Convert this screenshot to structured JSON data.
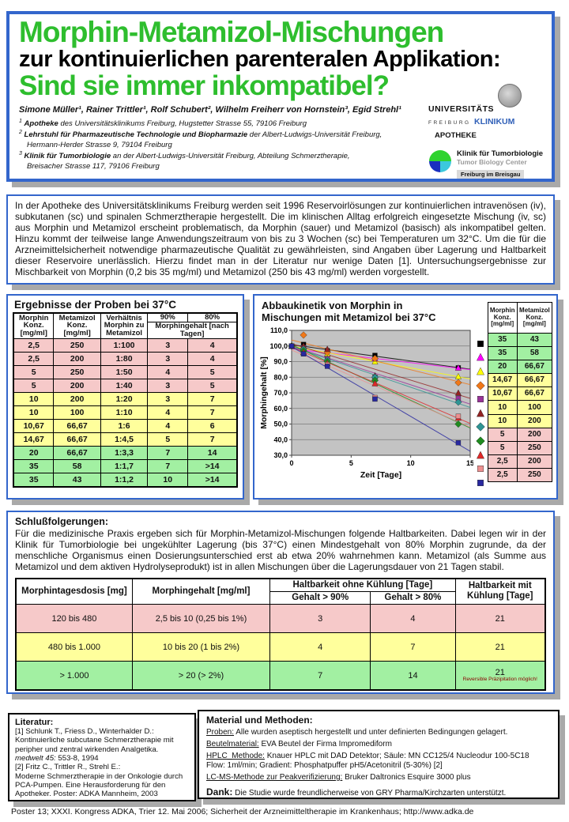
{
  "header": {
    "title_line1": "Morphin-Metamizol-Mischungen",
    "title_line2": "zur kontinuierlichen parenteralen Applikation:",
    "title_line3": "Sind sie immer inkompatibel?",
    "authors": "Simone Müller¹, Rainer Trittler¹, Rolf Schubert², Wilhelm Freiherr von Hornstein³, Egid Strehl¹",
    "affiliations": [
      {
        "sup": "1",
        "org": "Apotheke",
        "rest": " des Universitätsklinikums Freiburg, Hugstetter Strasse 55, 79106 Freiburg",
        "line2": ""
      },
      {
        "sup": "2",
        "org": "Lehrstuhl für Pharmazeutische Technologie und Biopharmazie",
        "rest": " der Albert-Ludwigs-Universität Freiburg,",
        "line2": "Hermann-Herder Strasse 9, 79104 Freiburg"
      },
      {
        "sup": "3",
        "org": "Klinik für Tumorbiologie",
        "rest": " an der Albert-Ludwigs-Universität Freiburg, Abteilung Schmerztherapie,",
        "line2": "Breisacher Strasse 117, 79106 Freiburg"
      }
    ],
    "logos": {
      "university_line1": "UNIVERSITÄTS",
      "university_line2": "FREIBURG",
      "university_line3": "KLINIKUM",
      "apotheke": "APOTHEKE",
      "tumor_line1": "Klinik für Tumorbiologie",
      "tumor_line2": "Tumor Biology Center",
      "tumor_line3": "Freiburg im Breisgau"
    }
  },
  "intro": {
    "text": "In der Apotheke des Universitätsklinikums Freiburg werden seit 1996 Reservoirlösungen zur kontinuierlichen intravenösen (iv), subkutanen (sc) und spinalen Schmerztherapie hergestellt.   Die im klinischen Alltag erfolgreich eingesetzte Mischung (iv, sc) aus Morphin und Metamizol erscheint problematisch, da Morphin (sauer) und Metamizol (basisch) als inkompatibel gelten.  Hinzu kommt der teilweise lange Anwendungszeitraum von bis zu 3 Wochen (sc) bei Temperaturen um 32°C.  Um die für die Arzneimittelsicherheit notwendige pharmazeutische Qualität zu gewährleisten, sind Angaben über Lagerung und Haltbarkeit dieser Reservoire unerlässlich.   Hierzu findet man in der Literatur nur wenige Daten [1].   Untersuchungsergebnisse zur Mischbarkeit von Morphin (0,2 bis 35 mg/ml) und Metamizol (250 bis 43 mg/ml) werden vorgestellt."
  },
  "results_table": {
    "title": "Ergebnisse der Proben bei 37°C",
    "headers": {
      "morphin": "Morphin Konz. [mg/ml]",
      "metamizol": "Metamizol Konz. [mg/ml]",
      "ratio": "Verhältnis Morphin zu Metamizol",
      "p90": "90%",
      "p80": "80%",
      "span": "Morphingehalt [nach Tagen]"
    },
    "rows": [
      {
        "morphin": "2,5",
        "metamizol": "250",
        "ratio": "1:100",
        "d90": "3",
        "d80": "4",
        "color": "pink"
      },
      {
        "morphin": "2,5",
        "metamizol": "200",
        "ratio": "1:80",
        "d90": "3",
        "d80": "4",
        "color": "pink"
      },
      {
        "morphin": "5",
        "metamizol": "250",
        "ratio": "1:50",
        "d90": "4",
        "d80": "5",
        "color": "pink"
      },
      {
        "morphin": "5",
        "metamizol": "200",
        "ratio": "1:40",
        "d90": "3",
        "d80": "5",
        "color": "pink"
      },
      {
        "morphin": "10",
        "metamizol": "200",
        "ratio": "1:20",
        "d90": "3",
        "d80": "7",
        "color": "yellow"
      },
      {
        "morphin": "10",
        "metamizol": "100",
        "ratio": "1:10",
        "d90": "4",
        "d80": "7",
        "color": "yellow"
      },
      {
        "morphin": "10,67",
        "metamizol": "66,67",
        "ratio": "1:6",
        "d90": "4",
        "d80": "6",
        "color": "yellow"
      },
      {
        "morphin": "14,67",
        "metamizol": "66,67",
        "ratio": "1:4,5",
        "d90": "5",
        "d80": "7",
        "color": "yellow"
      },
      {
        "morphin": "20",
        "metamizol": "66,67",
        "ratio": "1:3,3",
        "d90": "7",
        "d80": "14",
        "color": "green"
      },
      {
        "morphin": "35",
        "metamizol": "58",
        "ratio": "1:1,7",
        "d90": "7",
        "d80": ">14",
        "color": "green"
      },
      {
        "morphin": "35",
        "metamizol": "43",
        "ratio": "1:1,2",
        "d90": "10",
        "d80": ">14",
        "color": "green"
      }
    ]
  },
  "chart": {
    "title_line1": "Abbaukinetik von Morphin in",
    "title_line2": "Mischungen mit Metamizol bei 37°C"
  },
  "chart_data": {
    "type": "scatter",
    "title": "Abbaukinetik von Morphin in Mischungen mit Metamizol bei 37°C",
    "xlabel": "Zeit [Tage]",
    "ylabel": "Morphingehalt [%]",
    "xlim": [
      0,
      15
    ],
    "ylim": [
      30,
      110
    ],
    "xticks": [
      0,
      5,
      10,
      15
    ],
    "ytick_step": 10,
    "grid": true,
    "plot_bg": "#C3C3C3",
    "legend_position": "right",
    "trendlines": "linear",
    "x": [
      0,
      1,
      3,
      7,
      14
    ],
    "series": [
      {
        "name": "Morphin 35 / Metamizol 43",
        "marker": "square",
        "color": "#000000",
        "values": [
          100,
          101,
          97,
          94,
          86
        ]
      },
      {
        "name": "Morphin 35 / Metamizol 58",
        "marker": "triangle",
        "color": "#FF00FF",
        "values": [
          100,
          96,
          95,
          92,
          86
        ]
      },
      {
        "name": "Morphin 20 / Metamizol 66,67",
        "marker": "triangle",
        "color": "#FFFF00",
        "values": [
          100,
          99,
          95,
          90,
          80.5
        ]
      },
      {
        "name": "Morphin 14,67 / Metamizol 66,67",
        "marker": "diamond",
        "color": "#F07818",
        "values": [
          100,
          107,
          96,
          92,
          76.5
        ]
      },
      {
        "name": "Morphin 10,67 / Metamizol 66,67",
        "marker": "square",
        "color": "#993399",
        "values": [
          100,
          99,
          92,
          80,
          66.5
        ]
      },
      {
        "name": "Morphin 10 / Metamizol 100",
        "marker": "triangle",
        "color": "#932222",
        "values": [
          100,
          100,
          98,
          81,
          70
        ]
      },
      {
        "name": "Morphin 10 / Metamizol 200",
        "marker": "diamond",
        "color": "#2E9494",
        "values": [
          100,
          98,
          91,
          80,
          64
        ]
      },
      {
        "name": "Morphin 5 / Metamizol 200",
        "marker": "diamond",
        "color": "#1F8B1F",
        "values": [
          100,
          97,
          90,
          78,
          50
        ]
      },
      {
        "name": "Morphin 5 / Metamizol 250",
        "marker": "triangle",
        "color": "#E02828",
        "values": [
          100,
          96,
          89,
          76,
          54
        ]
      },
      {
        "name": "Morphin 2,5 / Metamizol 200",
        "marker": "square",
        "color": "#EE9090",
        "values": [
          100,
          95,
          88,
          67,
          55
        ]
      },
      {
        "name": "Morphin 2,5 / Metamizol 250",
        "marker": "square",
        "color": "#2828A0",
        "values": [
          100,
          95,
          87,
          66,
          38
        ]
      }
    ]
  },
  "legend_table": {
    "headers": {
      "morphin": "Morphin Konz. [mg/ml]",
      "metamizol": "Metamizol Konz. [mg/ml]"
    },
    "rows": [
      {
        "morphin": "35",
        "metamizol": "43",
        "color": "green"
      },
      {
        "morphin": "35",
        "metamizol": "58",
        "color": "green"
      },
      {
        "morphin": "20",
        "metamizol": "66,67",
        "color": "green"
      },
      {
        "morphin": "14,67",
        "metamizol": "66,67",
        "color": "yellow"
      },
      {
        "morphin": "10,67",
        "metamizol": "66,67",
        "color": "yellow"
      },
      {
        "morphin": "10",
        "metamizol": "100",
        "color": "yellow"
      },
      {
        "morphin": "10",
        "metamizol": "200",
        "color": "yellow"
      },
      {
        "morphin": "5",
        "metamizol": "200",
        "color": "pink"
      },
      {
        "morphin": "5",
        "metamizol": "250",
        "color": "pink"
      },
      {
        "morphin": "2,5",
        "metamizol": "200",
        "color": "pink"
      },
      {
        "morphin": "2,5",
        "metamizol": "250",
        "color": "pink"
      }
    ]
  },
  "conclusions": {
    "heading": "Schlußfolgerungen:",
    "text": "Für die medizinische Praxis ergeben sich für Morphin-Metamizol-Mischungen folgende Haltbarkeiten.  Dabei legen wir in der Klinik für Tumorbiologie bei ungekühlter Lagerung (bis 37°C) einen Mindestgehalt von 80% Morphin zugrunde, da der menschliche Organismus einen Dosierungsunterschied erst ab etwa 20% wahrnehmen kann.   Metamizol (als Summe aus Metamizol und dem aktiven Hydrolyseprodukt) ist in allen Mischungen über die Lagerungsdauer von 21 Tagen stabil."
  },
  "dosage_table": {
    "headers": {
      "dose": "Morphintagesdosis [mg]",
      "content": "Morphingehalt [mg/ml]",
      "no_cooling": "Haltbarkeit ohne Kühlung [Tage]",
      "g90": "Gehalt > 90%",
      "g80": "Gehalt > 80%",
      "cooling": "Haltbarkeit mit Kühlung [Tage]"
    },
    "rows": [
      {
        "dose": "120 bis 480",
        "content": "2,5 bis 10  (0,25 bis 1%)",
        "d90": "3",
        "d80": "4",
        "cooled": "21",
        "note": "",
        "color": "pink"
      },
      {
        "dose": "480 bis 1.000",
        "content": "10 bis 20  (1 bis 2%)",
        "d90": "4",
        "d80": "7",
        "cooled": "21",
        "note": "",
        "color": "yellow"
      },
      {
        "dose": "> 1.000",
        "content": "> 20  (> 2%)",
        "d90": "7",
        "d80": "14",
        "cooled": "21",
        "note": "Reversible Präzipitation möglich!",
        "color": "green"
      }
    ]
  },
  "literature": {
    "heading": "Literatur:",
    "ref1_lines": [
      "[1] Schlunk T., Friess D., Winterhalder D.:",
      "Kontinuierliche subcutane Schmerztherapie mit",
      "peripher und zentral wirkenden Analgetika."
    ],
    "ref1_journal_italic": "medwelt 45:",
    "ref1_journal_rest": " 553-8, 1994",
    "ref2_lines": [
      "[2] Fritz C., Trittler R., Strehl E.:",
      "Moderne Schmerztherapie in der Onkologie durch",
      "PCA-Pumpen.  Eine Herausforderung für den",
      "Apotheker. Poster: ADKA Mannheim, 2003"
    ]
  },
  "methods": {
    "heading": "Material und Methoden:",
    "items": [
      {
        "label": "Proben:",
        "text": " Alle wurden aseptisch hergestellt und unter definierten Bedingungen gelagert.",
        "text2": ""
      },
      {
        "label": "Beutelmaterial:",
        "text": " EVA Beutel der Firma Impromediform",
        "text2": ""
      },
      {
        "label": "HPLC_Methode:",
        "text": " Knauer HPLC mit DAD Detektor; Säule: MN CC125/4 Nucleodur 100-5C18",
        "text2": "Flow: 1ml/min; Gradient: Phosphatpuffer pH5/Acetonitril (5-30%) [2]"
      },
      {
        "label": "LC-MS-Methode zur Peakverifizierung:",
        "text": " Bruker Daltronics Esquire 3000 plus",
        "text2": ""
      }
    ],
    "thanks_label": "Dank:",
    "thanks_text": "  Die Studie wurde freundlicherweise von GRY Pharma/Kirchzarten unterstützt."
  },
  "footer": {
    "text": "Poster 13; XXXI. Kongress ADKA, Trier 12. Mai 2006; Sicherheit der Arzneimitteltherapie im Krankenhaus; http://www.adka.de"
  },
  "colors": {
    "title_green": "#2EBE2E",
    "border_blue": "#3366CC",
    "row_pink": "#F6C9C9",
    "row_yellow": "#FFFF9C",
    "row_green": "#A2F0A2",
    "plot_bg": "#C3C3C3",
    "klinikum_blue": "#3060B8"
  }
}
